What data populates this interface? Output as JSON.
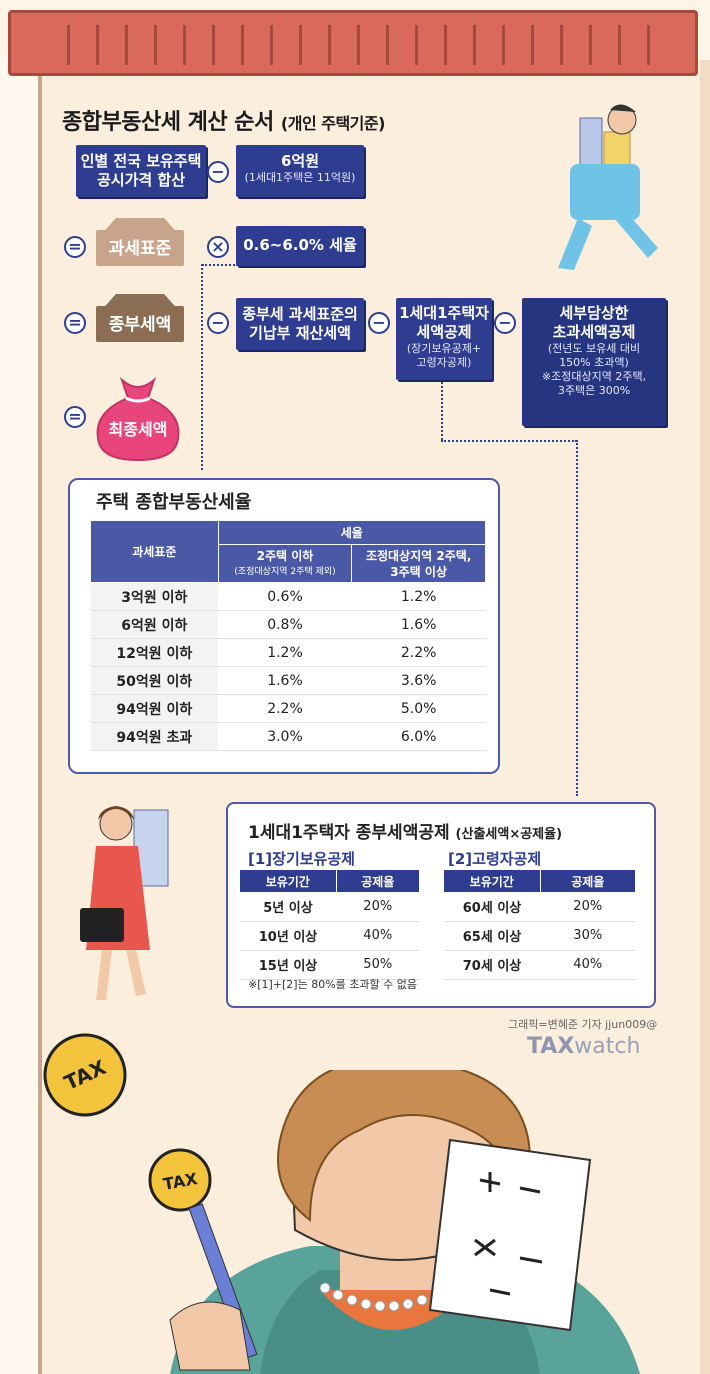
{
  "title": {
    "main": "종합부동산세 계산 순서",
    "sub": "(개인 주택기준)"
  },
  "flow": {
    "step1": {
      "l1": "인별 전국 보유주택",
      "l2": "공시가격 합산"
    },
    "step1_minus": {
      "l1": "6억원",
      "l2": "(1세대1주택은 11억원)"
    },
    "tax_base": "과세표준",
    "rate": "0.6~6.0% 세율",
    "gross_tax": "종부세액",
    "deduct_prop": {
      "l1": "종부세 과세표준의",
      "l2": "기납부 재산세액"
    },
    "deduct_single": {
      "l1": "1세대1주택자",
      "l2": "세액공제",
      "l3": "(장기보유공제+",
      "l4": "고령자공제)"
    },
    "deduct_cap": {
      "l1": "세부담상한",
      "l2": "초과세액공제",
      "l3": "(전년도 보유세 대비",
      "l4": "150% 초과액)",
      "l5": "※조정대상지역 2주택,",
      "l6": "3주택은 300%"
    },
    "final": "최종세액",
    "op_minus": "−",
    "op_equal": "=",
    "op_times": "×"
  },
  "rate_table": {
    "title": "주택 종합부동산세율",
    "col_base": "과세표준",
    "col_rate": "세율",
    "col_a": {
      "l1": "2주택 이하",
      "l2": "(조정대상지역 2주택 제외)"
    },
    "col_b": {
      "l1": "조정대상지역 2주택,",
      "l2": "3주택 이상"
    },
    "rows": [
      {
        "base": "3억원 이하",
        "a": "0.6%",
        "b": "1.2%"
      },
      {
        "base": "6억원 이하",
        "a": "0.8%",
        "b": "1.6%"
      },
      {
        "base": "12억원 이하",
        "a": "1.2%",
        "b": "2.2%"
      },
      {
        "base": "50억원 이하",
        "a": "1.6%",
        "b": "3.6%"
      },
      {
        "base": "94억원 이하",
        "a": "2.2%",
        "b": "5.0%"
      },
      {
        "base": "94억원 초과",
        "a": "3.0%",
        "b": "6.0%"
      }
    ]
  },
  "deduction": {
    "title": "1세대1주택자 종부세액공제",
    "title_sub": "(산출세액×공제율)",
    "long_term": {
      "title": "[1]장기보유공제",
      "h1": "보유기간",
      "h2": "공제율",
      "rows": [
        {
          "k": "5년 이상",
          "v": "20%"
        },
        {
          "k": "10년 이상",
          "v": "40%"
        },
        {
          "k": "15년 이상",
          "v": "50%"
        }
      ]
    },
    "senior": {
      "title": "[2]고령자공제",
      "h1": "보유기간",
      "h2": "공제율",
      "rows": [
        {
          "k": "60세 이상",
          "v": "20%"
        },
        {
          "k": "65세 이상",
          "v": "30%"
        },
        {
          "k": "70세 이상",
          "v": "40%"
        }
      ]
    },
    "note": "※[1]+[2]는 80%를 초과할 수 없음"
  },
  "credit": "그래픽=변혜준 기자 jjun009@",
  "logo": {
    "bold": "TAX",
    "light": "watch"
  },
  "tax_sign_text": "TAX",
  "icons": [
    "calculator-sheet-icon",
    "tax-sign-icon",
    "tax-coin-icon",
    "money-bag-icon"
  ]
}
